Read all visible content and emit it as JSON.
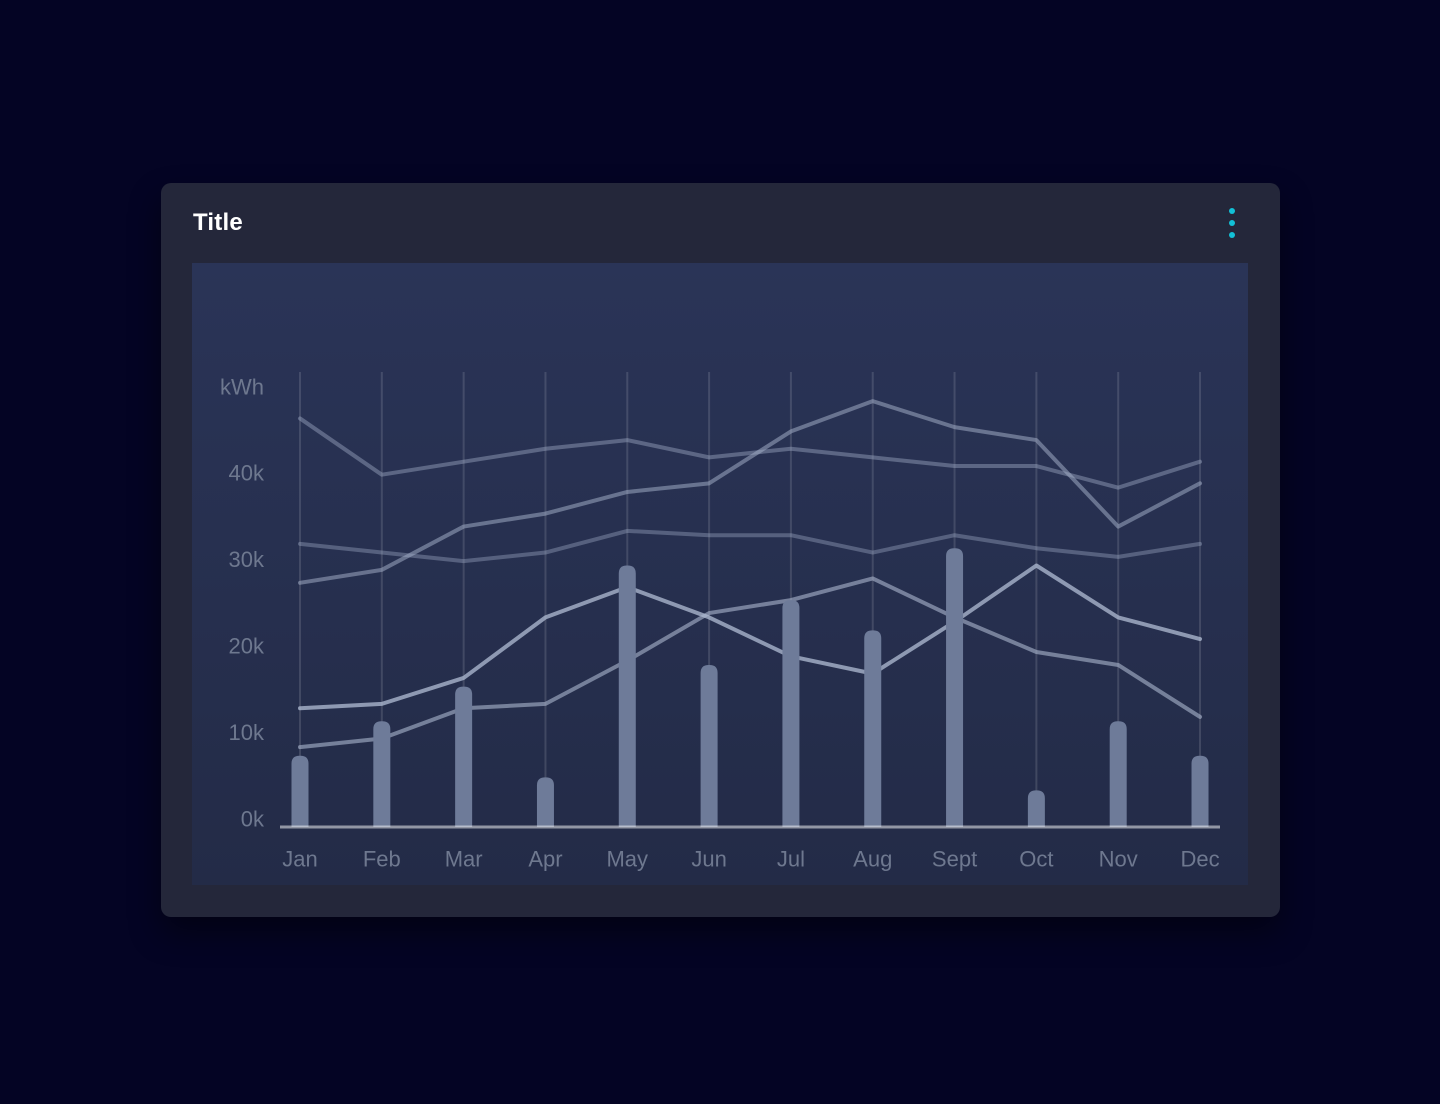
{
  "card": {
    "title": "Title"
  },
  "menu": {
    "type": "kebab-vertical",
    "dot_count": 3
  },
  "colors": {
    "page_bg": "#040424",
    "card_bg": "#24273A",
    "chart_bg_top": "#2A3457",
    "chart_bg_bottom": "#232B47",
    "grid": "rgba(255,255,255,0.13)",
    "axis": "rgba(255,255,255,0.5)",
    "tick_label": "#6E788F",
    "title": "#FFFFFF",
    "kebab": "#12C0D6",
    "bar": "#6E7B99",
    "line_colors": [
      "rgba(164,176,202,0.42)",
      "rgba(164,176,202,0.38)",
      "rgba(164,176,202,0.52)",
      "rgba(172,183,207,0.60)",
      "rgba(178,189,212,0.75)"
    ]
  },
  "chart_data": {
    "type": "bar",
    "subtype": "bar-with-lines",
    "title": "Title",
    "xlabel": "",
    "ylabel": "kWh",
    "unit_label": "kWh",
    "categories": [
      "Jan",
      "Feb",
      "Mar",
      "Apr",
      "May",
      "Jun",
      "Jul",
      "Aug",
      "Sept",
      "Oct",
      "Nov",
      "Dec"
    ],
    "y_ticks": [
      {
        "label": "0k",
        "value": 0
      },
      {
        "label": "10k",
        "value": 10
      },
      {
        "label": "20k",
        "value": 20
      },
      {
        "label": "30k",
        "value": 30
      },
      {
        "label": "40k",
        "value": 40
      }
    ],
    "ylim": [
      0,
      52
    ],
    "grid": "vertical-only",
    "legend_position": "none",
    "bar_series": {
      "name": "consumption-bars",
      "values": [
        8,
        12,
        16,
        5.5,
        30,
        18.5,
        26,
        22.5,
        32,
        4,
        12,
        8
      ]
    },
    "series": [
      {
        "name": "line-1",
        "values": [
          47,
          40.5,
          42,
          43.5,
          44.5,
          42.5,
          43.5,
          42.5,
          41.5,
          41.5,
          39,
          42
        ]
      },
      {
        "name": "line-2",
        "values": [
          32.5,
          31.5,
          30.5,
          31.5,
          34,
          33.5,
          33.5,
          31.5,
          33.5,
          32,
          31,
          32.5
        ]
      },
      {
        "name": "line-3",
        "values": [
          28,
          29.5,
          34.5,
          36,
          38.5,
          39.5,
          45.5,
          49,
          46,
          44.5,
          34.5,
          39.5
        ]
      },
      {
        "name": "line-4",
        "values": [
          9,
          10,
          13.5,
          14,
          19,
          24.5,
          26,
          28.5,
          24,
          20,
          18.5,
          12.5
        ]
      },
      {
        "name": "line-5",
        "values": [
          13.5,
          14,
          17,
          24,
          27.5,
          24,
          19.5,
          17.5,
          23.5,
          30,
          24,
          21.5
        ]
      }
    ]
  }
}
